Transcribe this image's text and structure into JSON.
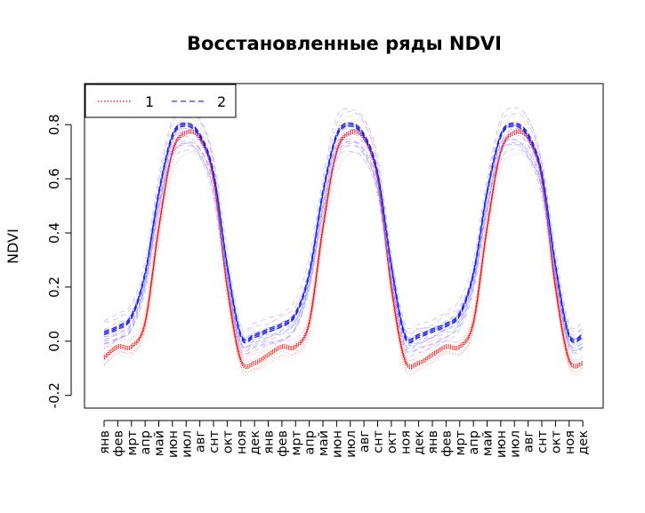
{
  "chart_data": {
    "type": "line",
    "title": "Восстановленные ряды NDVI",
    "xlabel": "",
    "ylabel": "NDVI",
    "ylim": [
      -0.2,
      0.8
    ],
    "yticks": [
      "-0.2",
      "0.0",
      "0.2",
      "0.4",
      "0.6",
      "0.8"
    ],
    "x_tick_labels": [
      "янв",
      "фев",
      "мрт",
      "апр",
      "май",
      "июн",
      "июл",
      "авг",
      "снт",
      "окт",
      "ноя",
      "дек",
      "янв",
      "фев",
      "мрт",
      "апр",
      "май",
      "июн",
      "июл",
      "авг",
      "снт",
      "окт",
      "ноя",
      "дек",
      "янв",
      "фев",
      "мрт",
      "апр",
      "май",
      "июн",
      "июл",
      "авг",
      "снт",
      "окт",
      "ноя",
      "дек"
    ],
    "legend": {
      "position": "top-left",
      "entries": [
        "1",
        "2"
      ]
    },
    "series": [
      {
        "name": "1",
        "color": "#ff0000",
        "linestyle": "dotted",
        "values": [
          -0.06,
          -0.02,
          -0.02,
          0.07,
          0.42,
          0.7,
          0.77,
          0.75,
          0.6,
          0.2,
          -0.07,
          -0.08,
          -0.05,
          -0.02,
          -0.02,
          0.07,
          0.42,
          0.7,
          0.77,
          0.75,
          0.6,
          0.2,
          -0.07,
          -0.08,
          -0.05,
          -0.02,
          -0.02,
          0.07,
          0.42,
          0.7,
          0.77,
          0.75,
          0.6,
          0.2,
          -0.07,
          -0.08
        ]
      },
      {
        "name": "2",
        "color": "#0000ff",
        "linestyle": "dashed",
        "values": [
          0.03,
          0.05,
          0.09,
          0.25,
          0.55,
          0.76,
          0.8,
          0.76,
          0.62,
          0.28,
          0.02,
          0.02,
          0.04,
          0.06,
          0.1,
          0.25,
          0.55,
          0.76,
          0.8,
          0.76,
          0.62,
          0.28,
          0.02,
          0.02,
          0.04,
          0.06,
          0.1,
          0.25,
          0.55,
          0.76,
          0.8,
          0.76,
          0.62,
          0.28,
          0.02,
          0.02
        ]
      }
    ]
  }
}
